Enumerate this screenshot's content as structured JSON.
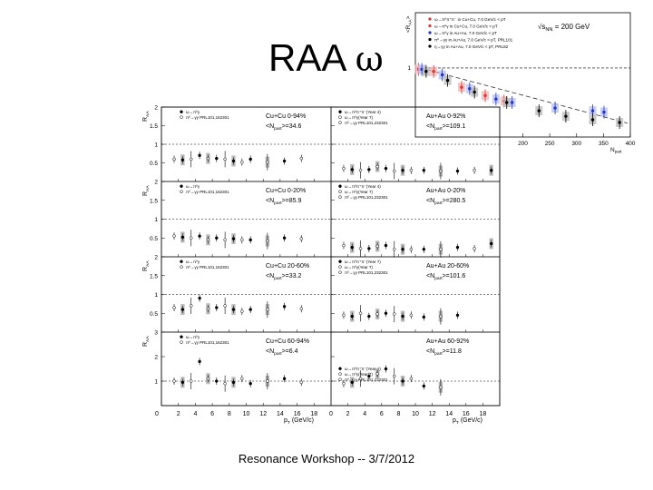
{
  "slide": {
    "title_text": "RAA",
    "title_symbol": "ω",
    "footer": "Resonance Workshop -- 3/7/2012"
  },
  "chart_data": [
    {
      "id": "inset-npart",
      "type": "scatter",
      "ylabel_symbol": "<R",
      "ylabel_sub": "AA",
      "ylabel_suffix": ">",
      "xlabel_symbol": "N",
      "xlabel_sub": "part",
      "energy_label": "√s",
      "energy_sub": "NN",
      "energy_value": " = 200 GeV",
      "ylim": [
        0,
        1.8
      ],
      "xlim": [
        0,
        400
      ],
      "xticks": [
        200,
        250,
        300,
        350,
        400
      ],
      "yticks": [
        1
      ],
      "legend": [
        {
          "label": "ω→π⁰π⁺π⁻ in Cu+Cu, 7.0 GeV/c < pT",
          "color": "#d33"
        },
        {
          "label": "ω→π⁰γ in Cu+Cu, 7.0 GeV/c < pT",
          "color": "#d33"
        },
        {
          "label": "ω→π⁰γ in Au+Au, 7.0 GeV/c < pT",
          "color": "#23c"
        },
        {
          "label": "π⁰→γγ in Au+Au, 7.0 GeV/c < pT, PRL101",
          "color": "#000"
        },
        {
          "label": "η→γγ in Au+Au, 7.0 GeV/c < pT, PRL82",
          "color": "#000"
        }
      ],
      "series": [
        {
          "name": "ω Cu+Cu",
          "color": "#d33",
          "points": [
            [
              6,
              0.98
            ],
            [
              34,
              0.95
            ],
            [
              86,
              0.72
            ],
            [
              130,
              0.6
            ],
            [
              165,
              0.52
            ]
          ]
        },
        {
          "name": "ω Au+Au",
          "color": "#23c",
          "points": [
            [
              12,
              0.98
            ],
            [
              50,
              0.9
            ],
            [
              101,
              0.7
            ],
            [
              150,
              0.55
            ],
            [
              180,
              0.5
            ],
            [
              260,
              0.42
            ],
            [
              330,
              0.38
            ],
            [
              351,
              0.36
            ]
          ]
        },
        {
          "name": "π⁰ Au+Au",
          "color": "#000",
          "points": [
            [
              20,
              0.95
            ],
            [
              60,
              0.82
            ],
            [
              110,
              0.65
            ],
            [
              170,
              0.5
            ],
            [
              230,
              0.38
            ],
            [
              280,
              0.3
            ],
            [
              330,
              0.25
            ],
            [
              380,
              0.21
            ]
          ]
        }
      ]
    },
    {
      "id": "grid-raa-pt",
      "type": "scatter",
      "ylabel_main": "R",
      "ylabel_sub": "AA",
      "xlabel_main": "p",
      "xlabel_sub": "T",
      "xlabel_unit": " (GeV/c)",
      "xlim": [
        0,
        20
      ],
      "xticks": [
        2,
        4,
        6,
        8,
        10,
        12,
        14,
        16,
        18
      ],
      "panels": [
        {
          "system": "Cu+Cu 0-94%",
          "npart": "<N",
          "npart_sub": "part",
          "npart_value": ">=34.6",
          "legend": [
            "ω→π⁰γ",
            "π⁰→γγ PRL101,162301"
          ],
          "ylim": [
            0,
            2
          ],
          "yticks": [
            0.5,
            1,
            1.5,
            2
          ],
          "points": [
            [
              1.5,
              0.6
            ],
            [
              2.5,
              0.58
            ],
            [
              3.5,
              0.6
            ],
            [
              4.5,
              0.7
            ],
            [
              5.5,
              0.62
            ],
            [
              6.5,
              0.62
            ],
            [
              7.5,
              0.6
            ],
            [
              8.5,
              0.55
            ],
            [
              9.5,
              0.52
            ],
            [
              10.5,
              0.6
            ],
            [
              12.5,
              0.52
            ],
            [
              14.5,
              0.55
            ],
            [
              16.5,
              0.62
            ]
          ]
        },
        {
          "system": "Au+Au 0-92%",
          "npart": "<N",
          "npart_sub": "part",
          "npart_value": ">=109.1",
          "legend": [
            "ω→π⁰π⁺π⁻(Year 4)",
            "ω→π⁰γ(Year 7)",
            "π⁰→γγ PRL101,232301"
          ],
          "ylim": [
            0,
            2
          ],
          "yticks": [
            0.5,
            1,
            1.5,
            2
          ],
          "points": [
            [
              1.5,
              0.35
            ],
            [
              2.5,
              0.32
            ],
            [
              3.5,
              0.3
            ],
            [
              4.5,
              0.32
            ],
            [
              5.5,
              0.4
            ],
            [
              6.5,
              0.35
            ],
            [
              7.5,
              0.28
            ],
            [
              8.5,
              0.3
            ],
            [
              9.5,
              0.3
            ],
            [
              11,
              0.3
            ],
            [
              13,
              0.28
            ],
            [
              15,
              0.28
            ],
            [
              17,
              0.3
            ],
            [
              19,
              0.3
            ]
          ]
        },
        {
          "system": "Cu+Cu 0-20%",
          "npart": "<N",
          "npart_sub": "part",
          "npart_value": ">=85.9",
          "legend": [
            "ω→π⁰γ",
            "π⁰→γγ PRL101,162301"
          ],
          "ylim": [
            0,
            2
          ],
          "yticks": [
            0.5,
            1,
            1.5,
            2
          ],
          "points": [
            [
              1.5,
              0.55
            ],
            [
              2.5,
              0.52
            ],
            [
              3.5,
              0.5
            ],
            [
              4.5,
              0.55
            ],
            [
              5.5,
              0.45
            ],
            [
              6.5,
              0.5
            ],
            [
              7.5,
              0.45
            ],
            [
              8.5,
              0.48
            ],
            [
              9.5,
              0.45
            ],
            [
              10.5,
              0.45
            ],
            [
              12.5,
              0.42
            ],
            [
              14.5,
              0.5
            ],
            [
              16.5,
              0.48
            ]
          ]
        },
        {
          "system": "Au+Au 0-20%",
          "npart": "<N",
          "npart_sub": "part",
          "npart_value": ">=280.5",
          "legend": [
            "ω→π⁰π⁺π⁻(Year 4)",
            "ω→π⁰γ(Year 7)",
            "π⁰→γγ PRL101,232301"
          ],
          "ylim": [
            0,
            2
          ],
          "yticks": [
            0.5,
            1,
            1.5,
            2
          ],
          "points": [
            [
              1.5,
              0.3
            ],
            [
              2.5,
              0.25
            ],
            [
              3.5,
              0.22
            ],
            [
              4.5,
              0.22
            ],
            [
              5.5,
              0.28
            ],
            [
              6.5,
              0.3
            ],
            [
              7.5,
              0.2
            ],
            [
              8.5,
              0.2
            ],
            [
              9.5,
              0.2
            ],
            [
              11,
              0.2
            ],
            [
              13,
              0.2
            ],
            [
              15,
              0.25
            ],
            [
              17,
              0.22
            ],
            [
              19,
              0.35
            ]
          ]
        },
        {
          "system": "Cu+Cu 20-60%",
          "npart": "<N",
          "npart_sub": "part",
          "npart_value": ">=33.2",
          "legend": [
            "ω→π⁰γ",
            "π⁰→γγ PRL101,162301"
          ],
          "ylim": [
            0,
            2
          ],
          "yticks": [
            0.5,
            1,
            1.5,
            2
          ],
          "points": [
            [
              1.5,
              0.65
            ],
            [
              2.5,
              0.6
            ],
            [
              3.5,
              0.7
            ],
            [
              4.5,
              0.9
            ],
            [
              5.5,
              0.62
            ],
            [
              6.5,
              0.65
            ],
            [
              7.5,
              0.7
            ],
            [
              8.5,
              0.6
            ],
            [
              9.5,
              0.55
            ],
            [
              10.5,
              0.6
            ],
            [
              12.5,
              0.6
            ],
            [
              14.5,
              0.68
            ],
            [
              16.5,
              0.62
            ]
          ]
        },
        {
          "system": "Au+Au 20-60%",
          "npart": "<N",
          "npart_sub": "part",
          "npart_value": ">=101.6",
          "legend": [
            "ω→π⁰π⁺π⁻(Year 7)",
            "ω→π⁰γ(Year 7)",
            "π⁰→γγ PRL101,232301"
          ],
          "ylim": [
            0,
            2
          ],
          "yticks": [
            0.5,
            1,
            1.5,
            2
          ],
          "points": [
            [
              1.5,
              0.45
            ],
            [
              2.5,
              0.42
            ],
            [
              3.5,
              0.5
            ],
            [
              4.5,
              0.42
            ],
            [
              5.5,
              0.48
            ],
            [
              6.5,
              0.5
            ],
            [
              7.5,
              0.48
            ],
            [
              8.5,
              0.42
            ],
            [
              9.5,
              0.45
            ],
            [
              11,
              0.4
            ],
            [
              13,
              0.42
            ],
            [
              15,
              0.45
            ]
          ]
        },
        {
          "system": "Cu+Cu 60-94%",
          "npart": "<N",
          "npart_sub": "part",
          "npart_value": ">=6.4",
          "legend": [
            "ω→π⁰γ",
            "π⁰→γγ PRL101,162301"
          ],
          "ylim": [
            0,
            3
          ],
          "yticks": [
            1,
            2,
            3
          ],
          "points": [
            [
              1.5,
              1.0
            ],
            [
              2.5,
              0.95
            ],
            [
              3.5,
              1.0
            ],
            [
              4.5,
              1.8
            ],
            [
              5.5,
              1.1
            ],
            [
              6.5,
              1.0
            ],
            [
              7.5,
              0.9
            ],
            [
              8.5,
              0.95
            ],
            [
              9.5,
              1.1
            ],
            [
              10.5,
              0.9
            ],
            [
              12.5,
              1.0
            ],
            [
              14.5,
              1.1
            ],
            [
              16.5,
              0.95
            ]
          ]
        },
        {
          "system": "Au+Au 60-92%",
          "npart": "<N",
          "npart_sub": "part",
          "npart_value": ">=11.8",
          "legend": [
            "ω→π⁰π⁺π⁻(Year 4)",
            "ω→π⁰γ(Year 7)",
            "π⁰→γγ PRL101,232301"
          ],
          "ylim": [
            0,
            3
          ],
          "yticks": [
            1,
            2,
            3
          ],
          "points": [
            [
              1.5,
              0.9
            ],
            [
              2.5,
              0.95
            ],
            [
              3.5,
              1.1
            ],
            [
              4.5,
              1.2
            ],
            [
              5.5,
              1.3
            ],
            [
              6.5,
              1.5
            ],
            [
              7.5,
              1.2
            ],
            [
              8.5,
              1.0
            ],
            [
              9.5,
              1.1
            ],
            [
              11,
              0.8
            ],
            [
              13,
              0.75
            ]
          ]
        }
      ]
    }
  ]
}
